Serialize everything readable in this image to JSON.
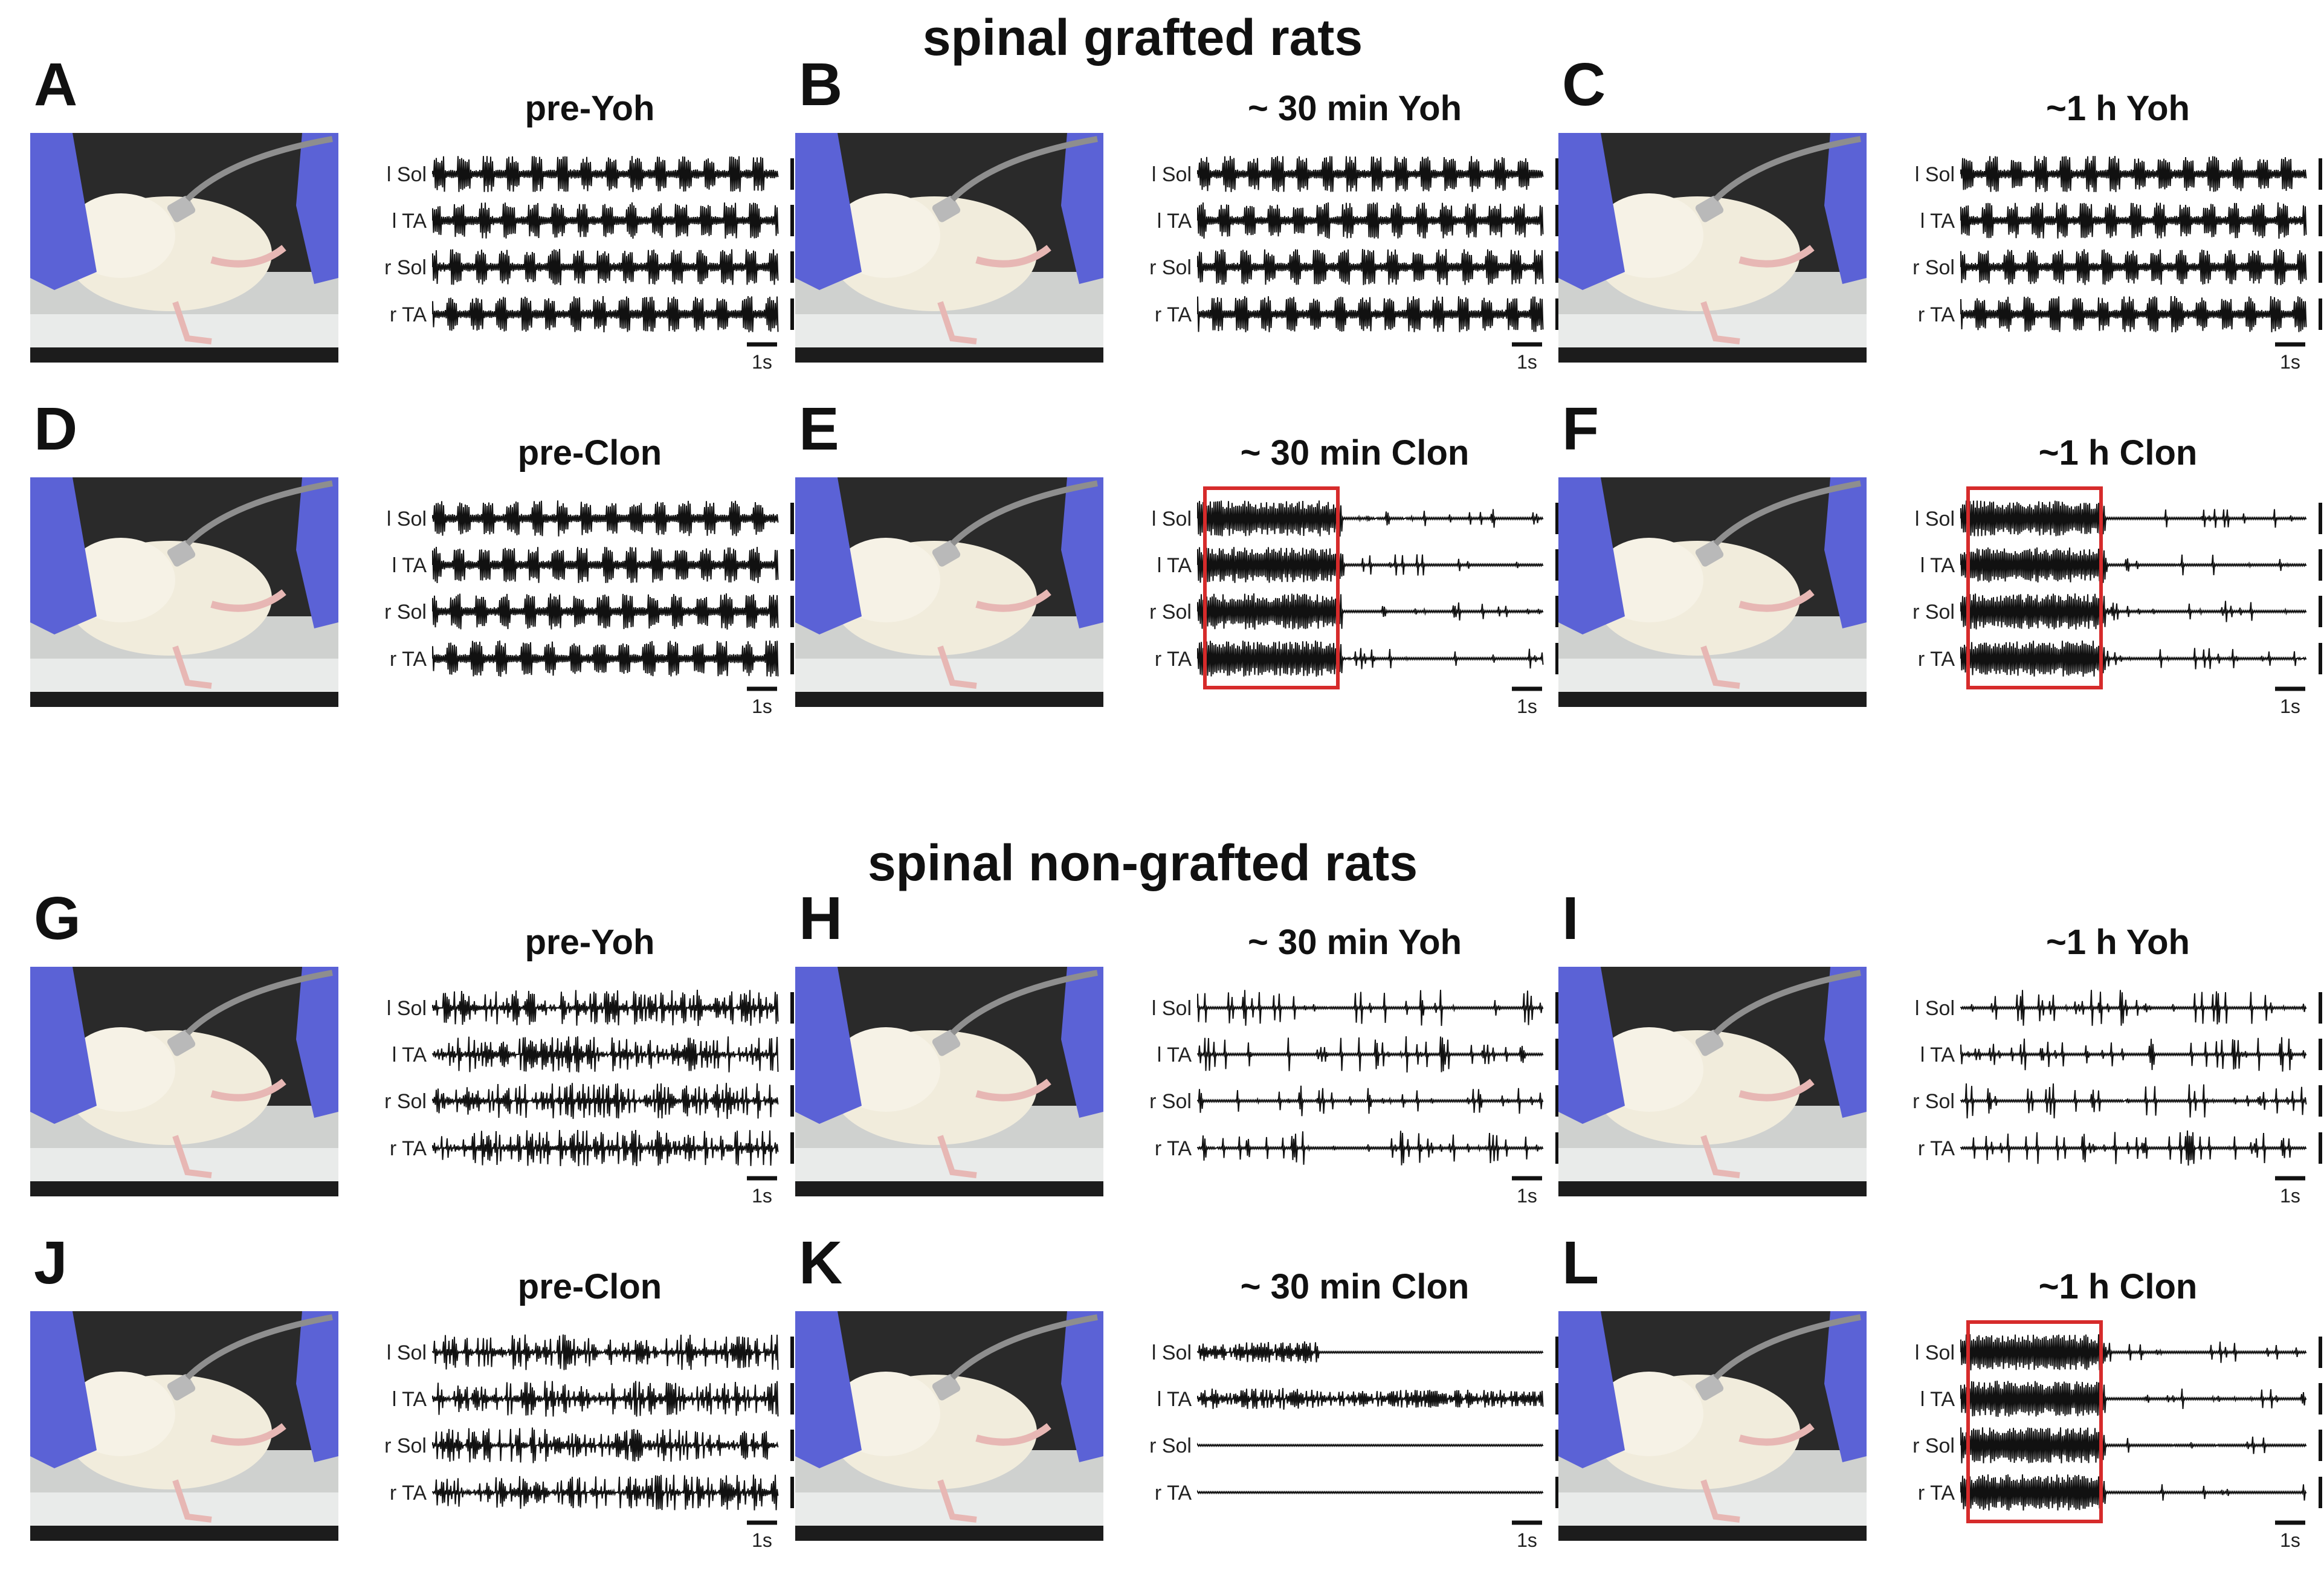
{
  "section_titles": {
    "grafted": "spinal grafted rats",
    "non_grafted": "spinal non-grafted rats"
  },
  "trace_labels": [
    "l Sol",
    "l TA",
    "r Sol",
    "r TA"
  ],
  "scale_bar_label": "1s",
  "highlight_color": "#d62b2b",
  "glove_color": "#5b62d6",
  "panels": [
    {
      "label": "A",
      "condition": "pre-Yoh",
      "pattern": "regular",
      "highlight": false
    },
    {
      "label": "B",
      "condition": "~ 30 min Yoh",
      "pattern": "regular",
      "highlight": false
    },
    {
      "label": "C",
      "condition": "~1 h Yoh",
      "pattern": "regular",
      "highlight": false
    },
    {
      "label": "D",
      "condition": "pre-Clon",
      "pattern": "regular",
      "highlight": false
    },
    {
      "label": "E",
      "condition": "~ 30 min Clon",
      "pattern": "burst-then-quiet",
      "highlight": true
    },
    {
      "label": "F",
      "condition": "~1 h Clon",
      "pattern": "burst-then-quiet",
      "highlight": true
    },
    {
      "label": "G",
      "condition": "pre-Yoh",
      "pattern": "irregular",
      "highlight": false
    },
    {
      "label": "H",
      "condition": "~ 30 min Yoh",
      "pattern": "sparse",
      "highlight": false
    },
    {
      "label": "I",
      "condition": "~1 h Yoh",
      "pattern": "sparse",
      "highlight": false
    },
    {
      "label": "J",
      "condition": "pre-Clon",
      "pattern": "irregular",
      "highlight": false
    },
    {
      "label": "K",
      "condition": "~ 30 min Clon",
      "pattern": "depressed",
      "highlight": false
    },
    {
      "label": "L",
      "condition": "~1 h Clon",
      "pattern": "burst-then-quiet",
      "highlight": true
    }
  ]
}
